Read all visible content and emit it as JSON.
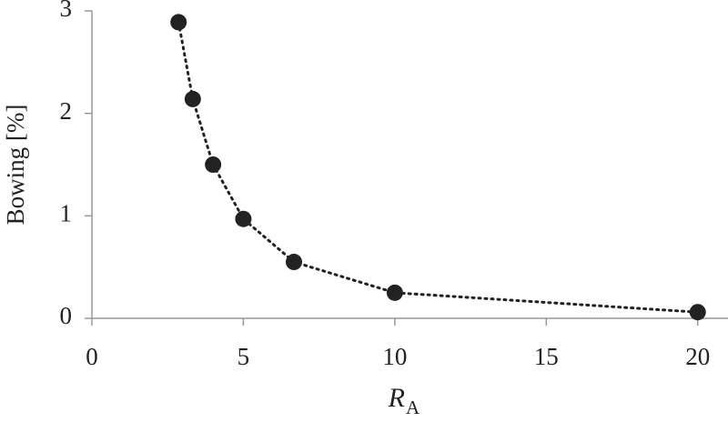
{
  "chart_data": {
    "type": "scatter",
    "ylabel": "Bowing [%]",
    "xlabel": "R",
    "xlabel_subscript": "A",
    "x": [
      2.86,
      3.33,
      4,
      5,
      6.67,
      10,
      20
    ],
    "series": [
      {
        "color": "#222222",
        "values": [
          2.89,
          2.14,
          1.5,
          0.97,
          0.55,
          0.25,
          0.06
        ]
      }
    ],
    "connect_line": "dotted",
    "xlim": [
      0,
      21
    ],
    "xticks": [
      0,
      5,
      10,
      15,
      20
    ],
    "ylim": [
      0,
      3
    ],
    "yticks": [
      0,
      1,
      2,
      3
    ],
    "grid": false
  }
}
